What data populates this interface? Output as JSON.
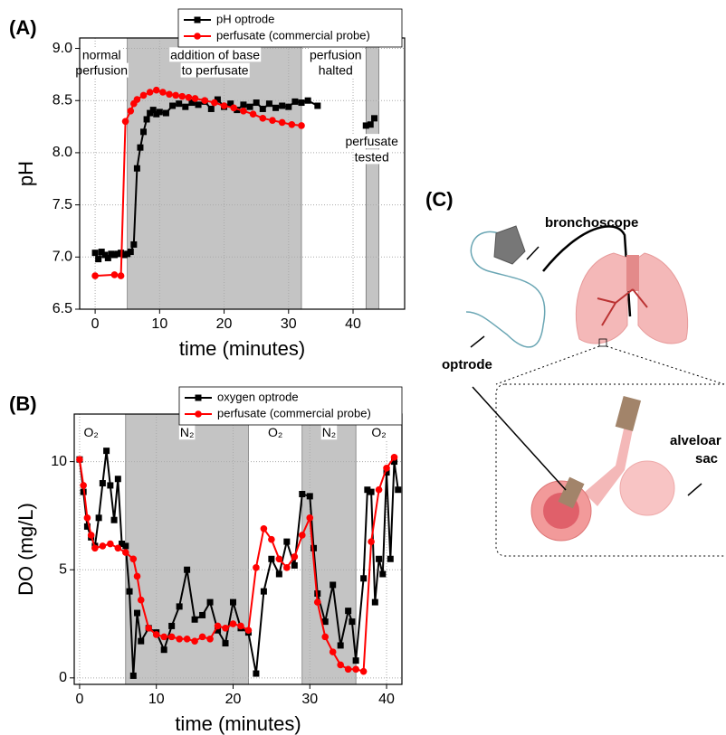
{
  "chart_data": [
    {
      "type": "line",
      "panel": "(A)",
      "x_label": "time (minutes)",
      "y_label": "pH",
      "xlim": [
        -2.4,
        48
      ],
      "ylim": [
        6.5,
        9.1
      ],
      "xticks": [
        0,
        10,
        20,
        30,
        40
      ],
      "yticks": [
        6.5,
        {
          "value": 7,
          "label": "7.0"
        },
        7.5,
        {
          "value": 8,
          "label": "8.0"
        },
        8.5,
        {
          "value": 9,
          "label": "9.0"
        }
      ],
      "grid": true,
      "legend": "top-right",
      "shaded": [
        [
          5,
          32
        ],
        [
          42,
          44
        ]
      ],
      "annotations": [
        [
          "normal",
          "perfusion"
        ],
        [
          "addition of base",
          "to perfusate"
        ],
        [
          "perfusion",
          "halted"
        ],
        [
          "perfusate",
          "tested"
        ]
      ],
      "series": [
        {
          "name": "pH optrode",
          "color": "#000000",
          "marker": "square",
          "x": [
            0,
            0.5,
            1,
            1.5,
            2,
            2.5,
            3,
            3.5,
            4,
            4.5,
            5,
            5.5,
            6,
            6.5,
            7,
            7.5,
            8,
            8.5,
            9,
            9.5,
            10,
            11,
            12,
            13,
            14,
            15,
            16,
            17,
            18,
            19,
            20,
            21,
            22,
            23,
            24,
            25,
            26,
            27,
            28,
            29,
            30,
            31,
            32,
            33,
            34.5,
            38,
            42,
            42.7,
            43.3
          ],
          "values": [
            7.04,
            6.98,
            7.05,
            7.02,
            6.99,
            7.03,
            7.02,
            7.03,
            7.04,
            7.02,
            7.03,
            7.05,
            7.12,
            7.85,
            8.05,
            8.2,
            8.32,
            8.38,
            8.41,
            8.37,
            8.39,
            8.38,
            8.45,
            8.47,
            8.44,
            8.48,
            8.46,
            8.49,
            8.42,
            8.51,
            8.44,
            8.47,
            8.41,
            8.46,
            8.44,
            8.48,
            8.42,
            8.47,
            8.43,
            8.45,
            8.44,
            8.49,
            8.48,
            8.5,
            8.45,
            null,
            8.26,
            8.27,
            8.33
          ]
        },
        {
          "name": "perfusate (commercial probe)",
          "color": "#ff0000",
          "marker": "circle",
          "x": [
            0,
            3,
            4,
            4.7,
            5.5,
            6,
            6.5,
            7.5,
            8.5,
            9.5,
            10.5,
            11.5,
            12.5,
            13.5,
            14.5,
            15.5,
            17,
            18.5,
            20,
            21.5,
            23,
            24.5,
            26,
            27.5,
            29,
            30.5,
            32
          ],
          "values": [
            6.82,
            6.83,
            6.82,
            8.3,
            8.4,
            8.47,
            8.51,
            8.55,
            8.58,
            8.6,
            8.58,
            8.56,
            8.55,
            8.54,
            8.53,
            8.52,
            8.5,
            8.48,
            8.45,
            8.43,
            8.4,
            8.37,
            8.33,
            8.31,
            8.29,
            8.27,
            8.26
          ]
        }
      ]
    },
    {
      "type": "line",
      "panel": "(B)",
      "x_label": "time (minutes)",
      "y_label": "DO (mg/L)",
      "xlim": [
        -0.7,
        42
      ],
      "ylim": [
        -0.3,
        12.2
      ],
      "xticks": [
        0,
        10,
        20,
        30,
        40
      ],
      "yticks": [
        0,
        5,
        10
      ],
      "grid": true,
      "legend": "top-right",
      "shaded": [
        [
          6,
          22
        ],
        [
          29,
          36
        ]
      ],
      "annotations": [
        [
          "O₂"
        ],
        [
          "N₂"
        ],
        [
          "O₂"
        ],
        [
          "N₂"
        ],
        [
          "O₂"
        ]
      ],
      "series": [
        {
          "name": "oxygen optrode",
          "color": "#000000",
          "marker": "square",
          "x": [
            0,
            0.5,
            1,
            1.5,
            2,
            2.5,
            3,
            3.5,
            4,
            4.5,
            5,
            5.5,
            6,
            6.5,
            7,
            7.5,
            8,
            9,
            10,
            11,
            12,
            13,
            14,
            15,
            16,
            17,
            18,
            19,
            20,
            21,
            22,
            23,
            24,
            25,
            26,
            27,
            28,
            29,
            30,
            30.5,
            31,
            32,
            33,
            34,
            35,
            35.5,
            36,
            37,
            37.5,
            38,
            38.5,
            39,
            39.5,
            40,
            40.5,
            41,
            41.5
          ],
          "values": [
            10.1,
            8.6,
            7,
            6.5,
            6.1,
            7.4,
            9,
            10.5,
            8.9,
            7.3,
            9.2,
            6.2,
            6.1,
            4,
            0.1,
            3,
            1.7,
            2.3,
            2.1,
            1.3,
            2.4,
            3.3,
            5,
            2.7,
            2.9,
            3.5,
            2.2,
            1.6,
            3.5,
            2.3,
            2.1,
            0.2,
            4,
            5.5,
            4.8,
            6.3,
            5.2,
            8.5,
            8.4,
            6,
            3.9,
            2.6,
            4.3,
            1.5,
            3.1,
            2.6,
            0.8,
            4.6,
            8.7,
            8.6,
            3.5,
            5.5,
            4.8,
            9.5,
            5.5,
            10,
            8.7
          ]
        },
        {
          "name": "perfusate (commercial probe)",
          "color": "#ff0000",
          "marker": "circle",
          "x": [
            0,
            0.5,
            1,
            1.5,
            2,
            3,
            4,
            5,
            6,
            7,
            7.5,
            8,
            9,
            10,
            11,
            12,
            13,
            14,
            15,
            16,
            17,
            18,
            19,
            20,
            21,
            22,
            23,
            24,
            25,
            26,
            27,
            28,
            29,
            30,
            31,
            32,
            33,
            34,
            35,
            36,
            37,
            38,
            39,
            40,
            41
          ],
          "values": [
            10.1,
            8.9,
            7.4,
            6.6,
            6.0,
            6.1,
            6.2,
            6.0,
            5.8,
            5.5,
            4.7,
            3.6,
            2.3,
            2.0,
            1.9,
            1.9,
            1.8,
            1.8,
            1.7,
            1.9,
            1.8,
            2.4,
            2.3,
            2.5,
            2.4,
            2.2,
            5.1,
            6.9,
            6.4,
            5.5,
            5.1,
            5.6,
            6.6,
            7.4,
            3.5,
            1.9,
            1.2,
            0.6,
            0.4,
            0.4,
            0.3,
            6.3,
            8.7,
            9.7,
            10.2
          ]
        }
      ]
    }
  ],
  "diagram": {
    "panel": "(C)",
    "labels": [
      "bronchoscope",
      "optrode",
      "alveloar",
      "sac"
    ]
  }
}
